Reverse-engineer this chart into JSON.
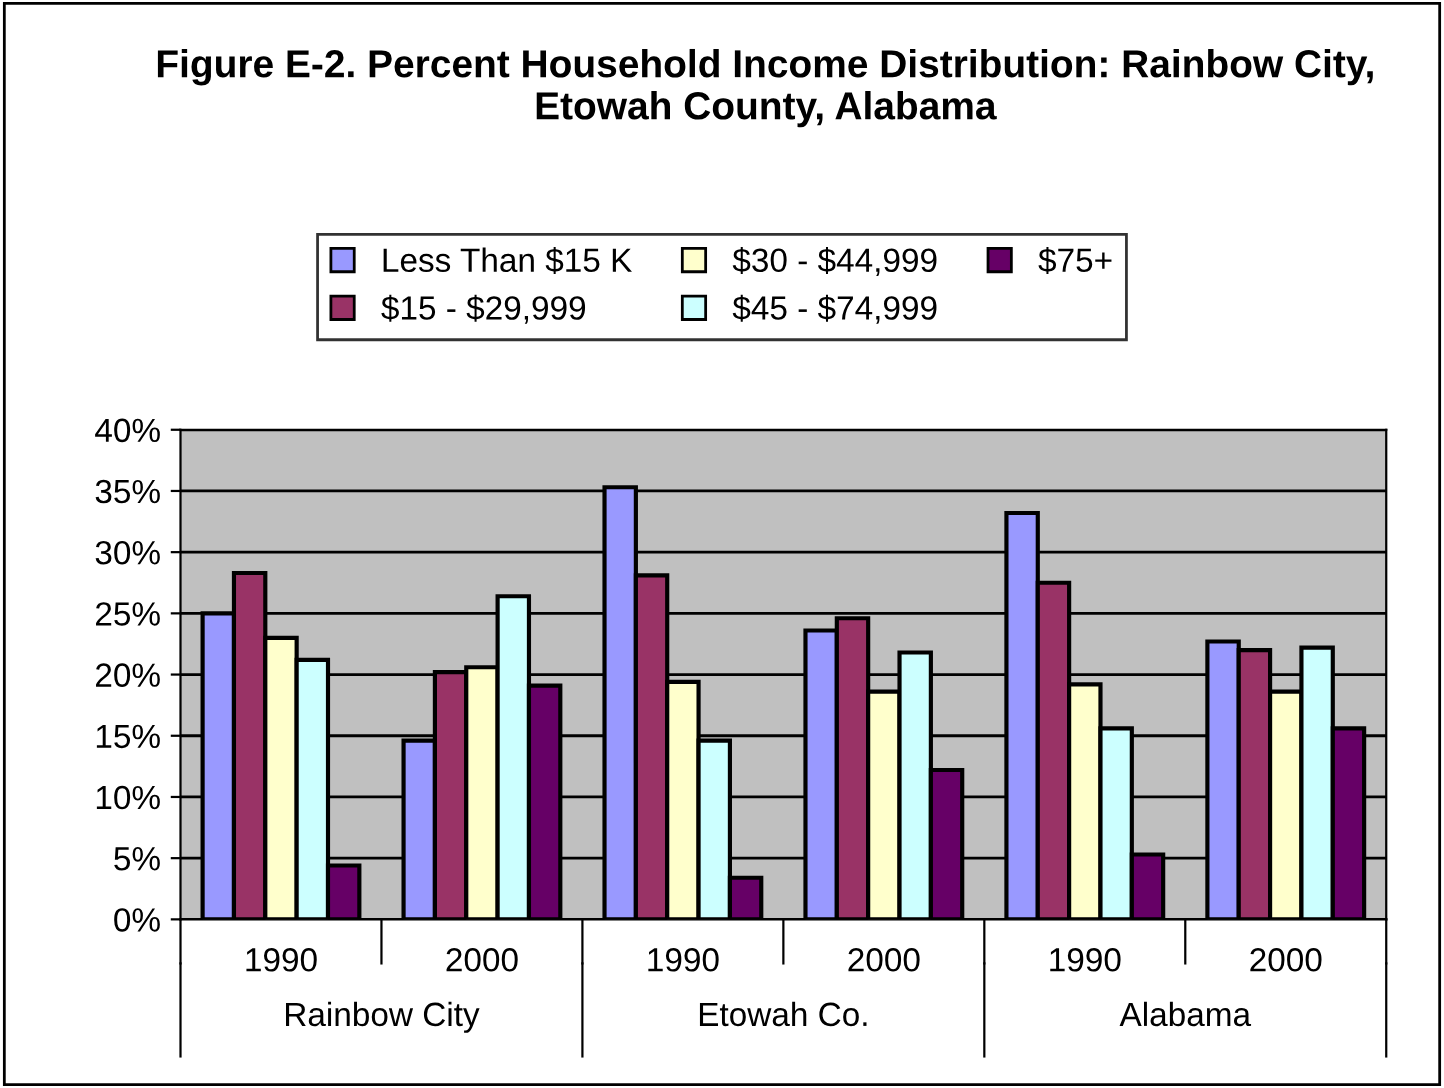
{
  "chart_data": {
    "type": "bar",
    "title": "Figure E-2. Percent Household Income Distribution: Rainbow City, Etowah County, Alabama",
    "categories": [
      "1990",
      "2000",
      "1990",
      "2000",
      "1990",
      "2000"
    ],
    "annotations": [
      "Rainbow City",
      "Etowah Co.",
      "Alabama"
    ],
    "series": [
      {
        "name": "Less Than $15 K",
        "color": "#9999ff",
        "values": [
          25,
          14.6,
          35.3,
          23.6,
          33.2,
          22.7
        ]
      },
      {
        "name": "$15 - $29,999",
        "color": "#993366",
        "values": [
          28.3,
          20.2,
          28.1,
          24.6,
          27.5,
          22.0
        ]
      },
      {
        "name": "$30 - $44,999",
        "color": "#ffffcc",
        "values": [
          23,
          20.6,
          19.4,
          18.6,
          19.2,
          18.6
        ]
      },
      {
        "name": "$45 - $74,999",
        "color": "#ccffff",
        "values": [
          21.2,
          26.4,
          14.6,
          21.8,
          15.6,
          22.2
        ]
      },
      {
        "name": "$75+",
        "color": "#660066",
        "values": [
          4.4,
          19.1,
          3.4,
          12.2,
          5.3,
          15.6
        ]
      }
    ],
    "ylim": [
      0,
      40
    ],
    "yticks": [
      {
        "value": 0,
        "label": "0%"
      },
      {
        "value": 5,
        "label": "5%"
      },
      {
        "value": 10,
        "label": "10%"
      },
      {
        "value": 15,
        "label": "15%"
      },
      {
        "value": 20,
        "label": "20%"
      },
      {
        "value": 25,
        "label": "25%"
      },
      {
        "value": 30,
        "label": "30%"
      },
      {
        "value": 35,
        "label": "35%"
      },
      {
        "value": 40,
        "label": "40%"
      }
    ],
    "grid": "y",
    "legend": "top"
  }
}
